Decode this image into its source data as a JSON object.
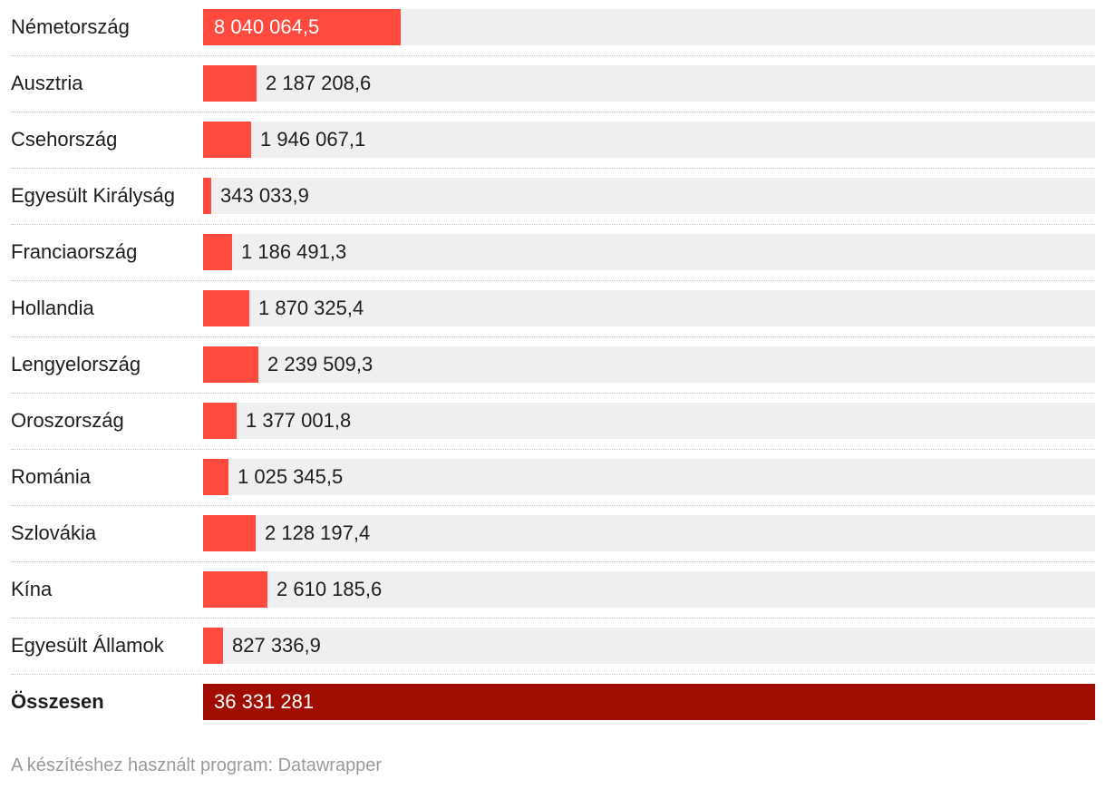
{
  "chart_data": {
    "type": "bar",
    "orientation": "horizontal",
    "categories": [
      "Németország",
      "Ausztria",
      "Csehország",
      "Egyesült Királyság",
      "Franciaország",
      "Hollandia",
      "Lengyelország",
      "Oroszország",
      "Románia",
      "Szlovákia",
      "Kína",
      "Egyesült Államok",
      "Összesen"
    ],
    "values": [
      8040064.5,
      2187208.6,
      1946067.1,
      343033.9,
      1186491.3,
      1870325.4,
      2239509.3,
      1377001.8,
      1025345.5,
      2128197.4,
      2610185.6,
      827336.9,
      36331281
    ],
    "value_labels": [
      "8 040 064,5",
      "2 187 208,6",
      "1 946 067,1",
      "343 033,9",
      "1 186 491,3",
      "1 870 325,4",
      "2 239 509,3",
      "1 377 001,8",
      "1 025 345,5",
      "2 128 197,4",
      "2 610 185,6",
      "827 336,9",
      "36 331 281"
    ],
    "xlim": [
      0,
      36331281
    ],
    "grid": false,
    "colors": {
      "bar": "#ff4a3d",
      "total_bar": "#a00c00",
      "track": "#efefef"
    }
  },
  "footer": "A készítéshez használt program: Datawrapper"
}
